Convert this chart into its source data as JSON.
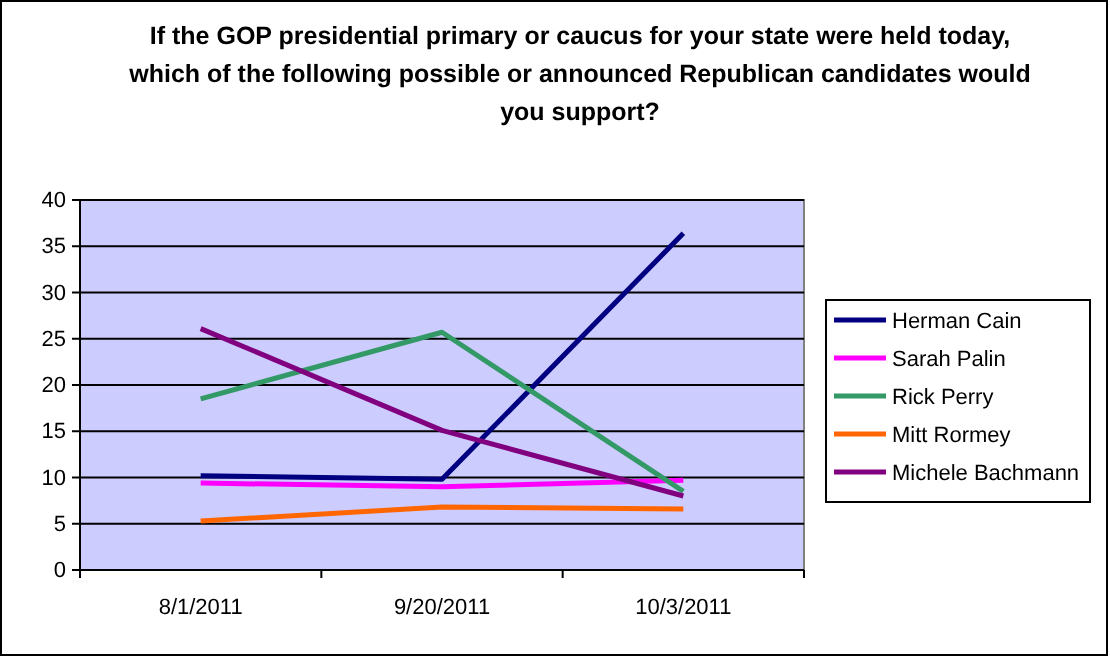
{
  "chart_data": {
    "type": "line",
    "title": "If the GOP presidential primary or caucus for your state were held today, which of the following possible or announced Republican candidates would you support?",
    "categories": [
      "8/1/2011",
      "9/20/2011",
      "10/3/2011"
    ],
    "ylim": [
      0,
      40
    ],
    "yticks": [
      0,
      5,
      10,
      15,
      20,
      25,
      30,
      35,
      40
    ],
    "grid": "y",
    "legend": "right",
    "marker": "none",
    "series": [
      {
        "name": "Herman Cain",
        "color": "#000080",
        "values": [
          10.2,
          9.8,
          36.4
        ]
      },
      {
        "name": "Sarah Palin",
        "color": "#ff00ff",
        "values": [
          9.4,
          9.0,
          9.7
        ]
      },
      {
        "name": "Rick Perry",
        "color": "#339966",
        "values": [
          18.5,
          25.7,
          8.5
        ]
      },
      {
        "name": "Mitt Rormey",
        "color": "#ff6600",
        "values": [
          5.3,
          6.8,
          6.6
        ]
      },
      {
        "name": "Michele Bachmann",
        "color": "#800080",
        "values": [
          26.1,
          15.1,
          8.0
        ]
      }
    ]
  }
}
